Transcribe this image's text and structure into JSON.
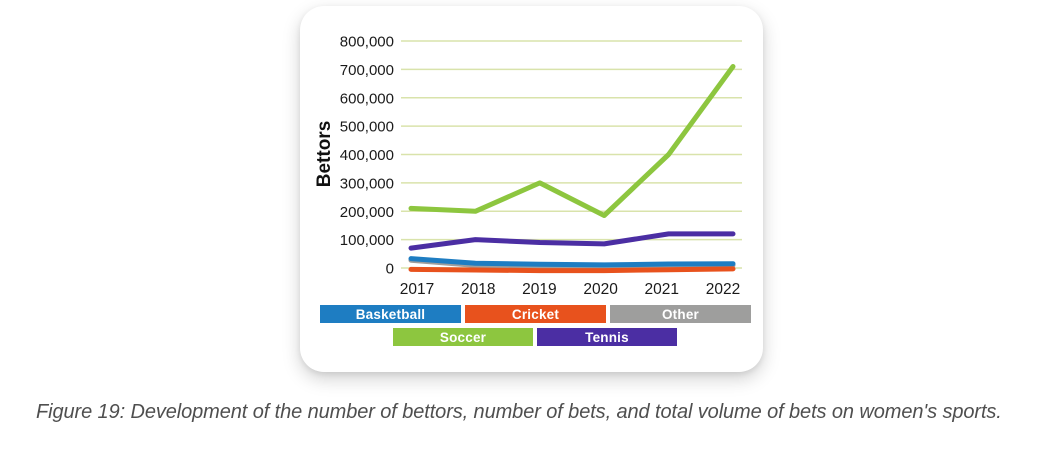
{
  "figure": {
    "caption": "Figure 19: Development of the number of bettors, number of bets, and total volume of bets on women's sports."
  },
  "chart_data": {
    "type": "line",
    "title": "",
    "xlabel": "",
    "ylabel": "Bettors",
    "x": [
      "2017",
      "2018",
      "2019",
      "2020",
      "2021",
      "2022"
    ],
    "ylim": [
      0,
      800000
    ],
    "ytick_step": 100000,
    "yticks": [
      "0",
      "100,000",
      "200,000",
      "300,000",
      "400,000",
      "500,000",
      "600,000",
      "700,000",
      "800,000"
    ],
    "grid": true,
    "legend_position": "bottom",
    "grid_color": "#d9e3ab",
    "text_color": "#1a1a1a",
    "series": [
      {
        "name": "Basketball",
        "color": "#1e7dc2",
        "values": [
          33000,
          17000,
          13000,
          11000,
          14000,
          15000
        ]
      },
      {
        "name": "Cricket",
        "color": "#e8521d",
        "values": [
          -5000,
          -7000,
          -9000,
          -9000,
          -6000,
          -3000
        ]
      },
      {
        "name": "Other",
        "color": "#9e9e9d",
        "values": [
          27000,
          9000,
          7000,
          6000,
          8000,
          10000
        ]
      },
      {
        "name": "Soccer",
        "color": "#8dc63f",
        "values": [
          210000,
          200000,
          300000,
          185000,
          400000,
          710000
        ]
      },
      {
        "name": "Tennis",
        "color": "#4b2ea3",
        "values": [
          70000,
          100000,
          90000,
          85000,
          120000,
          120000
        ]
      }
    ],
    "legend_rows": [
      [
        "Basketball",
        "Cricket",
        "Other"
      ],
      [
        "Soccer",
        "Tennis"
      ]
    ]
  }
}
